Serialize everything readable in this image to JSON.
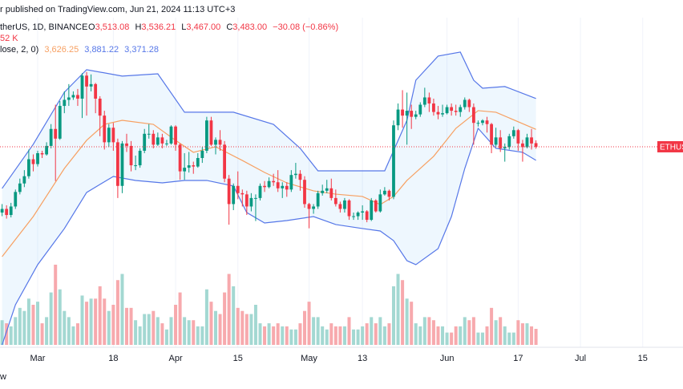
{
  "header": {
    "published": "r published on TradingView.com, Jun 21, 2024 11:13 UTC+3",
    "symbol": "therUS, 1D, BINANCE",
    "ohlc": [
      {
        "key": "O",
        "value": "3,513.08"
      },
      {
        "key": "H",
        "value": "3,536.21"
      },
      {
        "key": "L",
        "value": "3,467.00"
      },
      {
        "key": "C",
        "value": "3,483.00"
      }
    ],
    "change": "−30.08 (−0.86%)",
    "volume": "52 K",
    "bb": "lose, 2, 0)",
    "bb_values": [
      "3,626.25",
      "3,881.22",
      "3,371.28"
    ],
    "footer": "w"
  },
  "chart_data": {
    "type": "candlestick",
    "last_price_label": "ETHUS",
    "xlim": [
      -0.47,
      153.05
    ],
    "ylim": [
      1484,
      4694
    ],
    "volume_ylim": [
      0,
      1118
    ],
    "grid": true,
    "xticks": [
      {
        "value": 8,
        "label": "Mar"
      },
      {
        "value": 25,
        "label": "18"
      },
      {
        "value": 39,
        "label": "Apr"
      },
      {
        "value": 53,
        "label": "15"
      },
      {
        "value": 69,
        "label": "May"
      },
      {
        "value": 81,
        "label": "13"
      },
      {
        "value": 100,
        "label": "Jun"
      },
      {
        "value": 116,
        "label": "17"
      },
      {
        "value": 130,
        "label": "Jul"
      },
      {
        "value": 144,
        "label": "15"
      }
    ],
    "up_color": "#089981",
    "down_color": "#f23645",
    "up_volume_color": "#a3d8d2",
    "down_volume_color": "#f7a9ad",
    "x": [
      0,
      1,
      2,
      3,
      4,
      5,
      6,
      7,
      8,
      9,
      10,
      11,
      12,
      13,
      14,
      15,
      16,
      17,
      18,
      19,
      20,
      21,
      22,
      23,
      24,
      25,
      26,
      27,
      28,
      29,
      30,
      31,
      32,
      33,
      34,
      35,
      36,
      37,
      38,
      39,
      40,
      41,
      42,
      43,
      44,
      45,
      46,
      47,
      48,
      49,
      50,
      51,
      52,
      53,
      54,
      55,
      56,
      57,
      58,
      59,
      60,
      61,
      62,
      63,
      64,
      65,
      66,
      67,
      68,
      69,
      70,
      71,
      72,
      73,
      74,
      75,
      76,
      77,
      78,
      79,
      80,
      81,
      82,
      83,
      84,
      85,
      86,
      87,
      88,
      89,
      90,
      91,
      92,
      93,
      94,
      95,
      96,
      97,
      98,
      99,
      100,
      101,
      102,
      103,
      104,
      105,
      106,
      107,
      108,
      109,
      110,
      111,
      112,
      113,
      114,
      115,
      116,
      117,
      118,
      119,
      120
    ],
    "open": [
      2940,
      2970,
      2920,
      2990,
      3110,
      3180,
      3240,
      3380,
      3340,
      3430,
      3420,
      3490,
      3630,
      3550,
      3820,
      3870,
      3890,
      3910,
      3880,
      4070,
      3980,
      4000,
      3880,
      3740,
      3520,
      3640,
      3520,
      3160,
      3510,
      3490,
      3330,
      3330,
      3450,
      3590,
      3590,
      3500,
      3560,
      3510,
      3510,
      3650,
      3500,
      3280,
      3310,
      3330,
      3320,
      3390,
      3450,
      3700,
      3500,
      3540,
      3500,
      3220,
      3010,
      3160,
      3100,
      3090,
      2990,
      3060,
      3060,
      3160,
      3150,
      3200,
      3190,
      3140,
      3160,
      3130,
      3250,
      3260,
      3210,
      3010,
      2970,
      2990,
      3100,
      3120,
      3140,
      3060,
      3010,
      2970,
      3040,
      2910,
      2910,
      2940,
      2950,
      2880,
      3040,
      2950,
      3090,
      3120,
      3070,
      3660,
      3790,
      3740,
      3780,
      3730,
      3750,
      3830,
      3890,
      3840,
      3770,
      3750,
      3760,
      3810,
      3780,
      3770,
      3810,
      3870,
      3810,
      3680,
      3680,
      3700,
      3670,
      3500,
      3560,
      3470,
      3480,
      3570,
      3620,
      3510,
      3480,
      3560,
      3513.08
    ],
    "high": [
      3010,
      3000,
      3020,
      3130,
      3220,
      3290,
      3460,
      3420,
      3450,
      3450,
      3520,
      3670,
      3830,
      3860,
      3940,
      4000,
      3940,
      3960,
      4090,
      4100,
      4080,
      4010,
      3900,
      3780,
      3670,
      3680,
      3550,
      3530,
      3590,
      3530,
      3410,
      3470,
      3630,
      3670,
      3620,
      3600,
      3590,
      3540,
      3660,
      3660,
      3510,
      3430,
      3440,
      3360,
      3430,
      3480,
      3730,
      3730,
      3560,
      3620,
      3530,
      3250,
      3180,
      3280,
      3130,
      3120,
      3100,
      3090,
      3180,
      3200,
      3230,
      3260,
      3290,
      3190,
      3190,
      3290,
      3350,
      3290,
      3240,
      3020,
      3010,
      3120,
      3170,
      3210,
      3220,
      3130,
      3030,
      3060,
      3050,
      2940,
      2950,
      3000,
      2960,
      3060,
      3050,
      3130,
      3150,
      3130,
      3700,
      3840,
      3950,
      3930,
      3830,
      3780,
      3850,
      3970,
      3930,
      3880,
      3820,
      3830,
      3830,
      3840,
      3830,
      3830,
      3890,
      3880,
      3840,
      3700,
      3710,
      3730,
      3680,
      3640,
      3620,
      3510,
      3590,
      3650,
      3630,
      3540,
      3590,
      3630,
      3536.21
    ],
    "low": [
      2910,
      2890,
      2900,
      2970,
      3090,
      3150,
      3220,
      3280,
      3320,
      3390,
      3410,
      3470,
      3200,
      3540,
      3760,
      3820,
      3870,
      3820,
      3720,
      3740,
      3940,
      3760,
      3570,
      3460,
      3480,
      3450,
      3060,
      3100,
      3440,
      3280,
      3290,
      3310,
      3430,
      3550,
      3470,
      3490,
      3470,
      3490,
      3500,
      3450,
      3210,
      3210,
      3270,
      3260,
      3310,
      3350,
      3430,
      3490,
      3420,
      3450,
      3190,
      2840,
      2960,
      3050,
      2990,
      2920,
      2950,
      2870,
      3040,
      3110,
      3140,
      3160,
      3110,
      3060,
      3070,
      3110,
      3220,
      3120,
      2980,
      2810,
      2930,
      2970,
      3080,
      3100,
      3040,
      2990,
      2940,
      2940,
      2880,
      2880,
      2880,
      2880,
      2860,
      2870,
      2940,
      2940,
      3080,
      3040,
      3050,
      3620,
      3640,
      3500,
      3630,
      3710,
      3730,
      3810,
      3770,
      3740,
      3710,
      3730,
      3750,
      3740,
      3740,
      3730,
      3790,
      3770,
      3500,
      3650,
      3660,
      3600,
      3430,
      3480,
      3440,
      3360,
      3460,
      3550,
      3450,
      3360,
      3470,
      3460,
      3467
    ],
    "close": [
      2970,
      2920,
      2990,
      3110,
      3180,
      3240,
      3380,
      3340,
      3430,
      3420,
      3490,
      3630,
      3550,
      3820,
      3870,
      3890,
      3910,
      3880,
      4070,
      3980,
      4000,
      3880,
      3740,
      3520,
      3640,
      3520,
      3160,
      3510,
      3490,
      3330,
      3330,
      3450,
      3590,
      3590,
      3500,
      3560,
      3510,
      3510,
      3650,
      3500,
      3280,
      3310,
      3330,
      3320,
      3390,
      3450,
      3700,
      3500,
      3540,
      3500,
      3220,
      3010,
      3160,
      3100,
      3090,
      2990,
      3060,
      3060,
      3160,
      3150,
      3200,
      3190,
      3140,
      3160,
      3130,
      3250,
      3260,
      3210,
      3010,
      2970,
      2990,
      3100,
      3120,
      3140,
      3060,
      3010,
      2970,
      3040,
      2910,
      2910,
      2940,
      2950,
      2880,
      3040,
      2950,
      3090,
      3120,
      3070,
      3660,
      3790,
      3740,
      3780,
      3730,
      3750,
      3830,
      3890,
      3840,
      3770,
      3750,
      3760,
      3810,
      3780,
      3770,
      3810,
      3870,
      3810,
      3680,
      3680,
      3700,
      3670,
      3500,
      3560,
      3470,
      3480,
      3570,
      3620,
      3510,
      3480,
      3560,
      3510,
      3483
    ],
    "volume": [
      80,
      70,
      60,
      90,
      120,
      110,
      150,
      130,
      140,
      70,
      90,
      170,
      260,
      180,
      110,
      90,
      60,
      70,
      160,
      140,
      150,
      150,
      190,
      150,
      110,
      130,
      210,
      230,
      120,
      120,
      80,
      60,
      100,
      100,
      110,
      90,
      70,
      50,
      90,
      130,
      170,
      90,
      80,
      80,
      60,
      60,
      180,
      140,
      110,
      100,
      170,
      230,
      190,
      120,
      110,
      100,
      100,
      130,
      70,
      60,
      70,
      60,
      70,
      60,
      60,
      50,
      50,
      70,
      110,
      140,
      90,
      90,
      60,
      50,
      70,
      60,
      60,
      60,
      90,
      50,
      50,
      60,
      70,
      90,
      70,
      90,
      60,
      70,
      190,
      230,
      210,
      150,
      140,
      70,
      60,
      90,
      90,
      80,
      60,
      60,
      40,
      40,
      60,
      60,
      90,
      80,
      90,
      40,
      40,
      60,
      120,
      80,
      90,
      60,
      40,
      40,
      80,
      70,
      70,
      60,
      52
    ],
    "series": [
      {
        "color": "#5677e8",
        "x": [
          0,
          7,
          14,
          19,
          27,
          35,
          41,
          46,
          52,
          61,
          67,
          71,
          79,
          86,
          91,
          93,
          98,
          103,
          106,
          108,
          113,
          120
        ],
        "values": [
          3139,
          3503,
          3933,
          4119,
          4066,
          4085,
          3768,
          3768,
          3768,
          3668,
          3470,
          3284,
          3284,
          3284,
          3701,
          4032,
          4231,
          4264,
          4032,
          3966,
          3980,
          3881.22
        ]
      },
      {
        "color": "#f7a062",
        "x": [
          0,
          7,
          14,
          19,
          23,
          27,
          34,
          39,
          43,
          48,
          54,
          59,
          64,
          70,
          75,
          81,
          85,
          88,
          91,
          97,
          102,
          107,
          111,
          120
        ],
        "values": [
          2576,
          2907,
          3304,
          3536,
          3668,
          3701,
          3668,
          3536,
          3437,
          3483,
          3370,
          3271,
          3185,
          3119,
          3092,
          3073,
          3006,
          3073,
          3205,
          3404,
          3635,
          3781,
          3768,
          3626.25
        ]
      },
      {
        "color": "#5677e8",
        "x": [
          0,
          3,
          8,
          14,
          19,
          25,
          30,
          36,
          41,
          46,
          52,
          55,
          59,
          64,
          70,
          75,
          81,
          85,
          88,
          91,
          93,
          98,
          101,
          104,
          107,
          111,
          117,
          120
        ],
        "values": [
          1848,
          2179,
          2510,
          2808,
          3106,
          3238,
          3205,
          3185,
          3205,
          3205,
          3159,
          2940,
          2854,
          2874,
          2907,
          2841,
          2808,
          2788,
          2708,
          2543,
          2510,
          2642,
          2907,
          3304,
          3635,
          3470,
          3437,
          3371.28
        ]
      }
    ],
    "band_fill": "rgba(33,150,243,0.08)"
  }
}
